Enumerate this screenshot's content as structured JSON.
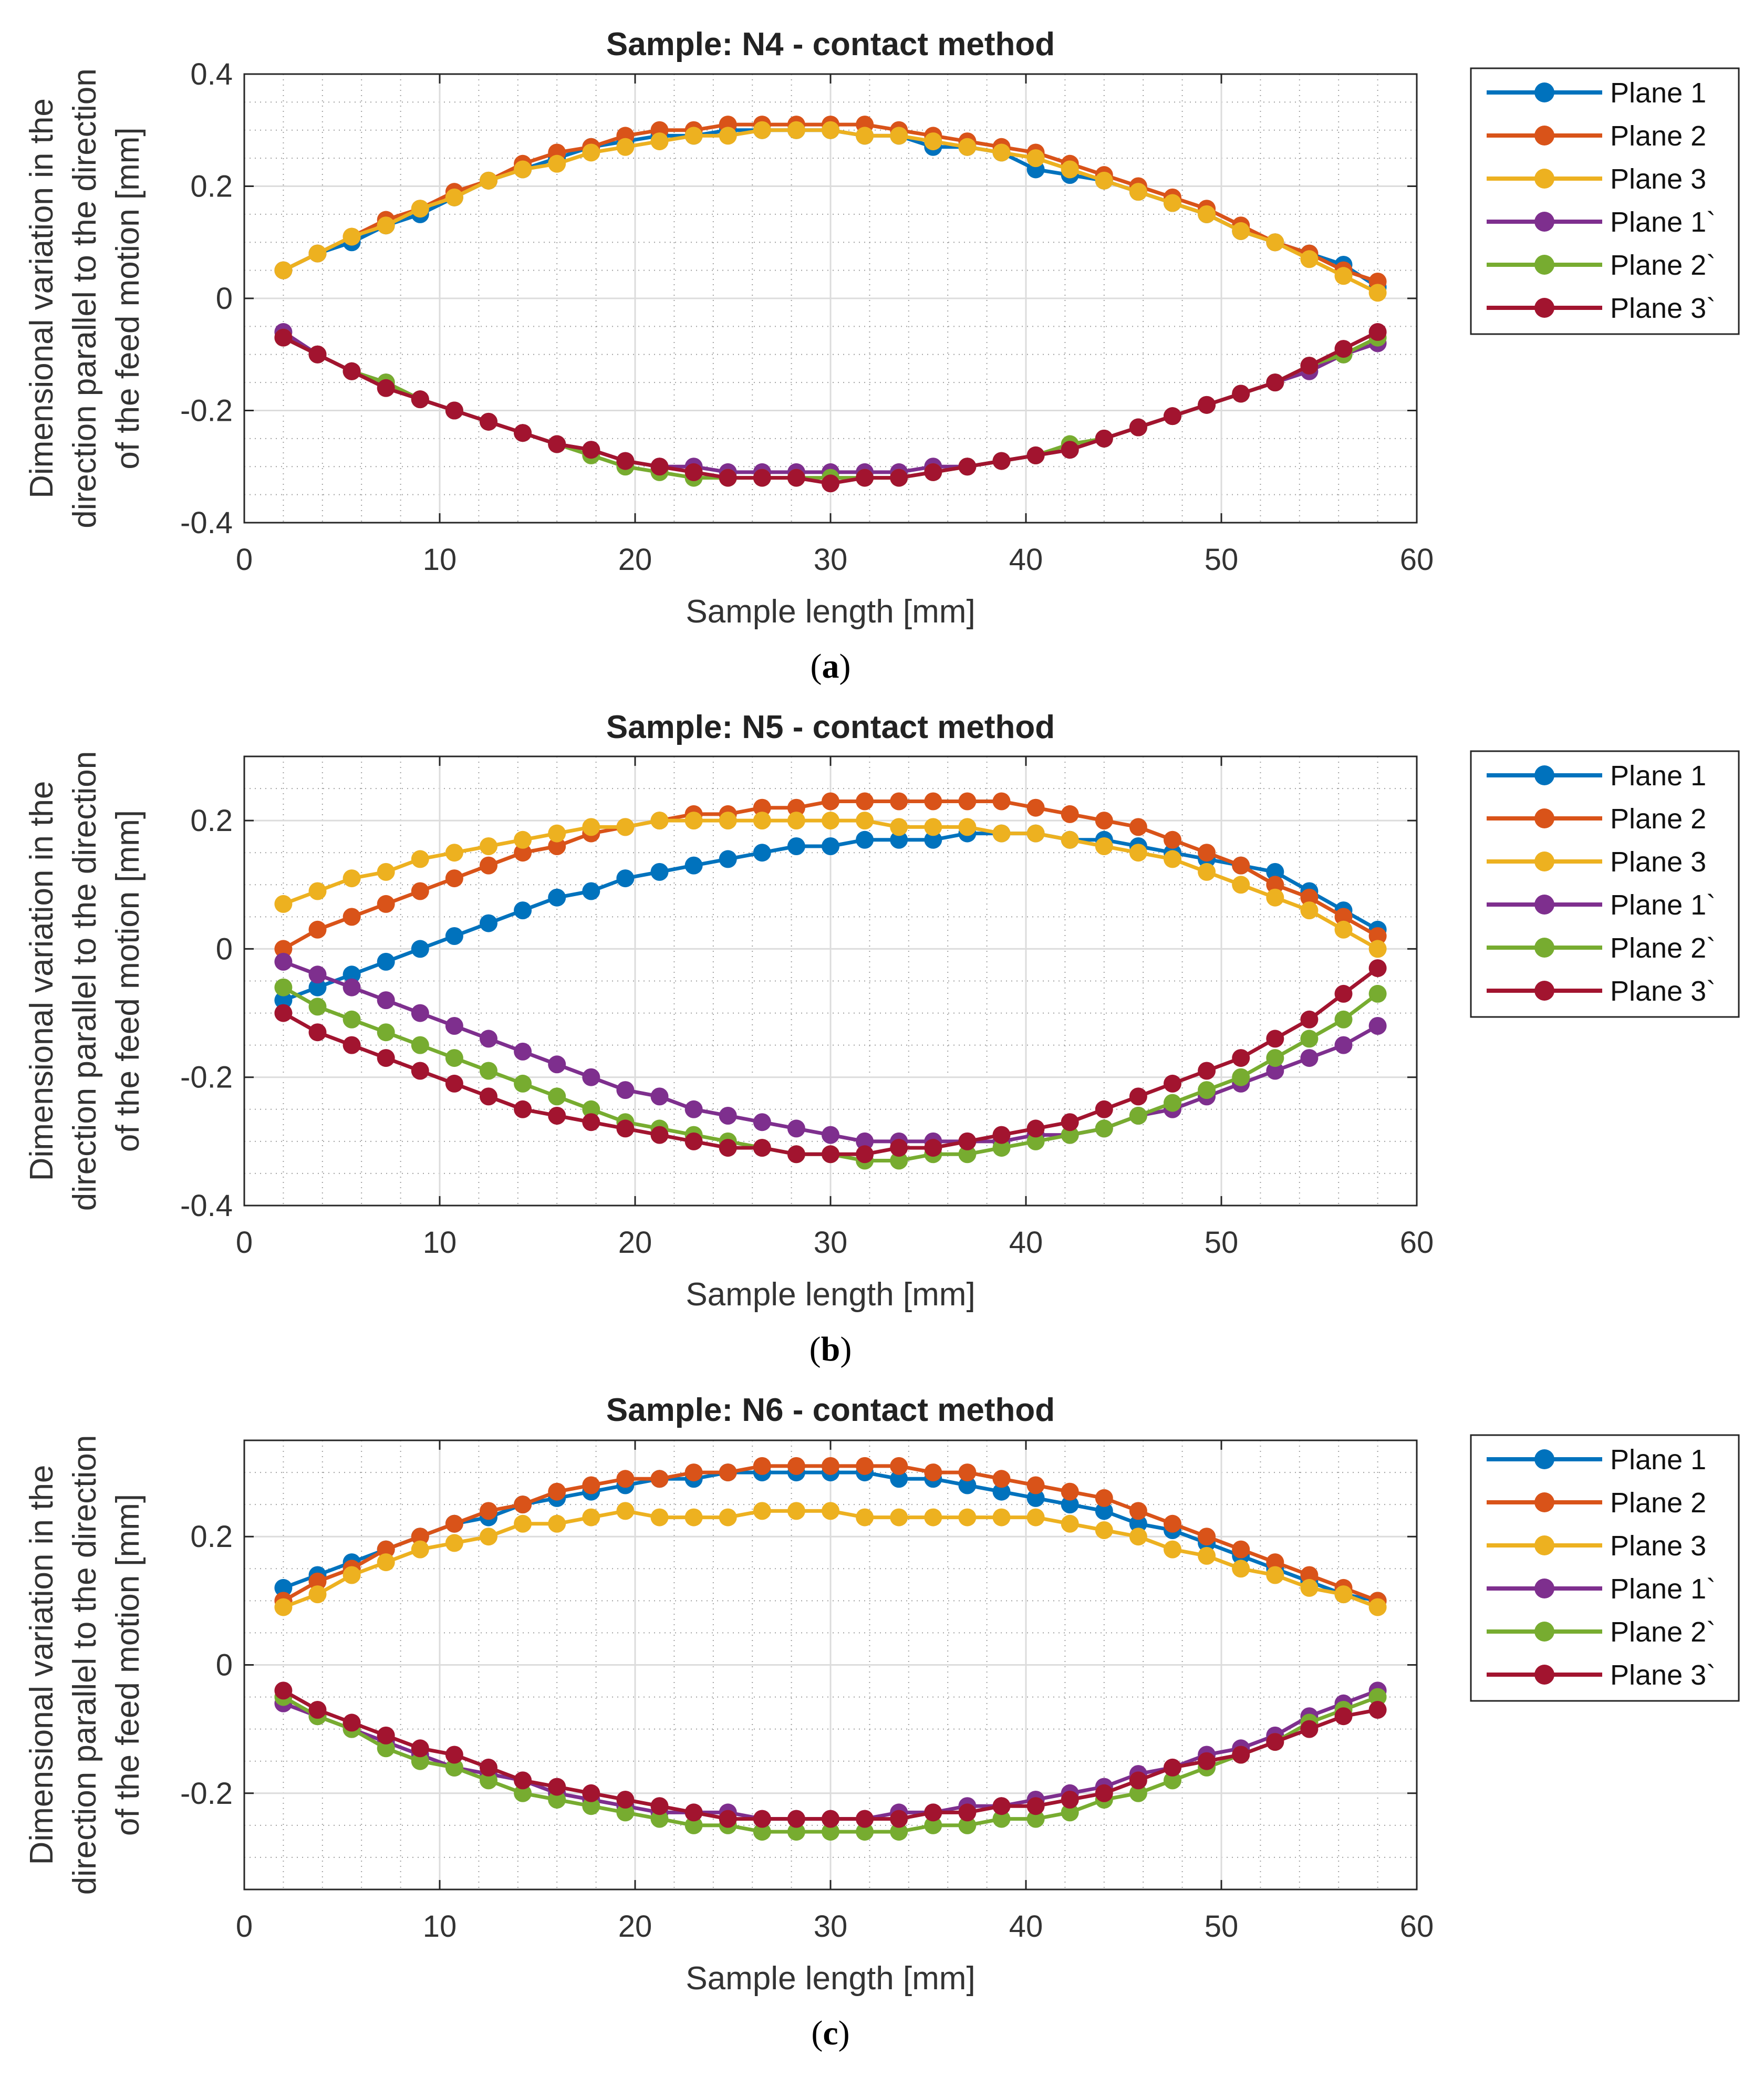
{
  "chart_data": [
    {
      "type": "line",
      "title": "Sample: N4 - contact method",
      "caption_letter": "a",
      "xlabel": "Sample length [mm]",
      "ylabel_lines": [
        "Dimensional variation in the",
        "direction parallel to the direction",
        "of the feed motion [mm]"
      ],
      "xlim": [
        0,
        60
      ],
      "ylim": [
        -0.4,
        0.4
      ],
      "xticks": [
        0,
        10,
        20,
        30,
        40,
        50,
        60
      ],
      "xtick_labels": [
        "0",
        "10",
        "20",
        "30",
        "40",
        "50",
        "60"
      ],
      "yticks": [
        -0.4,
        -0.2,
        0,
        0.2,
        0.4
      ],
      "ytick_labels": [
        "-0.4",
        "-0.2",
        "0",
        "0.2",
        "0.4"
      ],
      "grid": true,
      "legend_position": "outside-right",
      "x": [
        2,
        3.75,
        5.5,
        7.25,
        9,
        10.75,
        12.5,
        14.25,
        16,
        17.75,
        19.5,
        21.25,
        23,
        24.75,
        26.5,
        28.25,
        30,
        31.75,
        33.5,
        35.25,
        37,
        38.75,
        40.5,
        42.25,
        44,
        45.75,
        47.5,
        49.25,
        51,
        52.75,
        54.5,
        56.25,
        58
      ],
      "series": [
        {
          "name": "Plane 1",
          "values": [
            0.05,
            0.08,
            0.1,
            0.13,
            0.15,
            0.18,
            0.21,
            0.23,
            0.25,
            0.27,
            0.28,
            0.29,
            0.29,
            0.3,
            0.3,
            0.3,
            0.3,
            0.29,
            0.29,
            0.27,
            0.27,
            0.26,
            0.23,
            0.22,
            0.21,
            0.19,
            0.17,
            0.15,
            0.12,
            0.1,
            0.08,
            0.06,
            0.02
          ]
        },
        {
          "name": "Plane 2",
          "values": [
            0.05,
            0.08,
            0.11,
            0.14,
            0.16,
            0.19,
            0.21,
            0.24,
            0.26,
            0.27,
            0.29,
            0.3,
            0.3,
            0.31,
            0.31,
            0.31,
            0.31,
            0.31,
            0.3,
            0.29,
            0.28,
            0.27,
            0.26,
            0.24,
            0.22,
            0.2,
            0.18,
            0.16,
            0.13,
            0.1,
            0.08,
            0.05,
            0.03
          ]
        },
        {
          "name": "Plane 3",
          "values": [
            0.05,
            0.08,
            0.11,
            0.13,
            0.16,
            0.18,
            0.21,
            0.23,
            0.24,
            0.26,
            0.27,
            0.28,
            0.29,
            0.29,
            0.3,
            0.3,
            0.3,
            0.29,
            0.29,
            0.28,
            0.27,
            0.26,
            0.25,
            0.23,
            0.21,
            0.19,
            0.17,
            0.15,
            0.12,
            0.1,
            0.07,
            0.04,
            0.01
          ]
        },
        {
          "name": "Plane 1`",
          "values": [
            -0.06,
            -0.1,
            -0.13,
            -0.15,
            -0.18,
            -0.2,
            -0.22,
            -0.24,
            -0.26,
            -0.27,
            -0.29,
            -0.3,
            -0.3,
            -0.31,
            -0.31,
            -0.31,
            -0.31,
            -0.31,
            -0.31,
            -0.3,
            -0.3,
            -0.29,
            -0.28,
            -0.27,
            -0.25,
            -0.23,
            -0.21,
            -0.19,
            -0.17,
            -0.15,
            -0.13,
            -0.1,
            -0.08
          ]
        },
        {
          "name": "Plane 2`",
          "values": [
            -0.07,
            -0.1,
            -0.13,
            -0.15,
            -0.18,
            -0.2,
            -0.22,
            -0.24,
            -0.26,
            -0.28,
            -0.3,
            -0.31,
            -0.32,
            -0.32,
            -0.32,
            -0.32,
            -0.32,
            -0.32,
            -0.32,
            -0.31,
            -0.3,
            -0.29,
            -0.28,
            -0.26,
            -0.25,
            -0.23,
            -0.21,
            -0.19,
            -0.17,
            -0.15,
            -0.12,
            -0.1,
            -0.07
          ]
        },
        {
          "name": "Plane 3`",
          "values": [
            -0.07,
            -0.1,
            -0.13,
            -0.16,
            -0.18,
            -0.2,
            -0.22,
            -0.24,
            -0.26,
            -0.27,
            -0.29,
            -0.3,
            -0.31,
            -0.32,
            -0.32,
            -0.32,
            -0.33,
            -0.32,
            -0.32,
            -0.31,
            -0.3,
            -0.29,
            -0.28,
            -0.27,
            -0.25,
            -0.23,
            -0.21,
            -0.19,
            -0.17,
            -0.15,
            -0.12,
            -0.09,
            -0.06
          ]
        }
      ]
    },
    {
      "type": "line",
      "title": "Sample: N5 - contact method",
      "caption_letter": "b",
      "xlabel": "Sample length [mm]",
      "ylabel_lines": [
        "Dimensional variation in the",
        "direction parallel to the direction",
        "of the feed motion [mm]"
      ],
      "xlim": [
        0,
        60
      ],
      "ylim": [
        -0.4,
        0.3
      ],
      "xticks": [
        0,
        10,
        20,
        30,
        40,
        50,
        60
      ],
      "xtick_labels": [
        "0",
        "10",
        "20",
        "30",
        "40",
        "50",
        "60"
      ],
      "yticks": [
        -0.4,
        -0.2,
        0,
        0.2
      ],
      "ytick_labels": [
        "-0.4",
        "-0.2",
        "0",
        "0.2"
      ],
      "grid": true,
      "legend_position": "outside-right",
      "x": [
        2,
        3.75,
        5.5,
        7.25,
        9,
        10.75,
        12.5,
        14.25,
        16,
        17.75,
        19.5,
        21.25,
        23,
        24.75,
        26.5,
        28.25,
        30,
        31.75,
        33.5,
        35.25,
        37,
        38.75,
        40.5,
        42.25,
        44,
        45.75,
        47.5,
        49.25,
        51,
        52.75,
        54.5,
        56.25,
        58
      ],
      "series": [
        {
          "name": "Plane 1",
          "values": [
            -0.08,
            -0.06,
            -0.04,
            -0.02,
            0.0,
            0.02,
            0.04,
            0.06,
            0.08,
            0.09,
            0.11,
            0.12,
            0.13,
            0.14,
            0.15,
            0.16,
            0.16,
            0.17,
            0.17,
            0.17,
            0.18,
            0.18,
            0.18,
            0.17,
            0.17,
            0.16,
            0.15,
            0.14,
            0.13,
            0.12,
            0.09,
            0.06,
            0.03
          ]
        },
        {
          "name": "Plane 2",
          "values": [
            0.0,
            0.03,
            0.05,
            0.07,
            0.09,
            0.11,
            0.13,
            0.15,
            0.16,
            0.18,
            0.19,
            0.2,
            0.21,
            0.21,
            0.22,
            0.22,
            0.23,
            0.23,
            0.23,
            0.23,
            0.23,
            0.23,
            0.22,
            0.21,
            0.2,
            0.19,
            0.17,
            0.15,
            0.13,
            0.1,
            0.08,
            0.05,
            0.02
          ]
        },
        {
          "name": "Plane 3",
          "values": [
            0.07,
            0.09,
            0.11,
            0.12,
            0.14,
            0.15,
            0.16,
            0.17,
            0.18,
            0.19,
            0.19,
            0.2,
            0.2,
            0.2,
            0.2,
            0.2,
            0.2,
            0.2,
            0.19,
            0.19,
            0.19,
            0.18,
            0.18,
            0.17,
            0.16,
            0.15,
            0.14,
            0.12,
            0.1,
            0.08,
            0.06,
            0.03,
            0.0
          ]
        },
        {
          "name": "Plane 1`",
          "values": [
            -0.02,
            -0.04,
            -0.06,
            -0.08,
            -0.1,
            -0.12,
            -0.14,
            -0.16,
            -0.18,
            -0.2,
            -0.22,
            -0.23,
            -0.25,
            -0.26,
            -0.27,
            -0.28,
            -0.29,
            -0.3,
            -0.3,
            -0.3,
            -0.3,
            -0.3,
            -0.29,
            -0.29,
            -0.28,
            -0.26,
            -0.25,
            -0.23,
            -0.21,
            -0.19,
            -0.17,
            -0.15,
            -0.12
          ]
        },
        {
          "name": "Plane 2`",
          "values": [
            -0.06,
            -0.09,
            -0.11,
            -0.13,
            -0.15,
            -0.17,
            -0.19,
            -0.21,
            -0.23,
            -0.25,
            -0.27,
            -0.28,
            -0.29,
            -0.3,
            -0.31,
            -0.32,
            -0.32,
            -0.33,
            -0.33,
            -0.32,
            -0.32,
            -0.31,
            -0.3,
            -0.29,
            -0.28,
            -0.26,
            -0.24,
            -0.22,
            -0.2,
            -0.17,
            -0.14,
            -0.11,
            -0.07
          ]
        },
        {
          "name": "Plane 3`",
          "values": [
            -0.1,
            -0.13,
            -0.15,
            -0.17,
            -0.19,
            -0.21,
            -0.23,
            -0.25,
            -0.26,
            -0.27,
            -0.28,
            -0.29,
            -0.3,
            -0.31,
            -0.31,
            -0.32,
            -0.32,
            -0.32,
            -0.31,
            -0.31,
            -0.3,
            -0.29,
            -0.28,
            -0.27,
            -0.25,
            -0.23,
            -0.21,
            -0.19,
            -0.17,
            -0.14,
            -0.11,
            -0.07,
            -0.03
          ]
        }
      ]
    },
    {
      "type": "line",
      "title": "Sample: N6 - contact method",
      "caption_letter": "c",
      "xlabel": "Sample length [mm]",
      "ylabel_lines": [
        "Dimensional variation in the",
        "direction parallel to the direction",
        "of the feed motion [mm]"
      ],
      "xlim": [
        0,
        60
      ],
      "ylim": [
        -0.35,
        0.35
      ],
      "xticks": [
        0,
        10,
        20,
        30,
        40,
        50,
        60
      ],
      "xtick_labels": [
        "0",
        "10",
        "20",
        "30",
        "40",
        "50",
        "60"
      ],
      "yticks": [
        -0.2,
        0,
        0.2
      ],
      "ytick_labels": [
        "-0.2",
        "0",
        "0.2"
      ],
      "grid": true,
      "legend_position": "outside-right",
      "x": [
        2,
        3.75,
        5.5,
        7.25,
        9,
        10.75,
        12.5,
        14.25,
        16,
        17.75,
        19.5,
        21.25,
        23,
        24.75,
        26.5,
        28.25,
        30,
        31.75,
        33.5,
        35.25,
        37,
        38.75,
        40.5,
        42.25,
        44,
        45.75,
        47.5,
        49.25,
        51,
        52.75,
        54.5,
        56.25,
        58
      ],
      "series": [
        {
          "name": "Plane 1",
          "values": [
            0.12,
            0.14,
            0.16,
            0.18,
            0.2,
            0.22,
            0.23,
            0.25,
            0.26,
            0.27,
            0.28,
            0.29,
            0.29,
            0.3,
            0.3,
            0.3,
            0.3,
            0.3,
            0.29,
            0.29,
            0.28,
            0.27,
            0.26,
            0.25,
            0.24,
            0.22,
            0.21,
            0.19,
            0.17,
            0.15,
            0.13,
            0.11,
            0.1
          ]
        },
        {
          "name": "Plane 2",
          "values": [
            0.1,
            0.13,
            0.15,
            0.18,
            0.2,
            0.22,
            0.24,
            0.25,
            0.27,
            0.28,
            0.29,
            0.29,
            0.3,
            0.3,
            0.31,
            0.31,
            0.31,
            0.31,
            0.31,
            0.3,
            0.3,
            0.29,
            0.28,
            0.27,
            0.26,
            0.24,
            0.22,
            0.2,
            0.18,
            0.16,
            0.14,
            0.12,
            0.1
          ]
        },
        {
          "name": "Plane 3",
          "values": [
            0.09,
            0.11,
            0.14,
            0.16,
            0.18,
            0.19,
            0.2,
            0.22,
            0.22,
            0.23,
            0.24,
            0.23,
            0.23,
            0.23,
            0.24,
            0.24,
            0.24,
            0.23,
            0.23,
            0.23,
            0.23,
            0.23,
            0.23,
            0.22,
            0.21,
            0.2,
            0.18,
            0.17,
            0.15,
            0.14,
            0.12,
            0.11,
            0.09
          ]
        },
        {
          "name": "Plane 1`",
          "values": [
            -0.06,
            -0.08,
            -0.1,
            -0.12,
            -0.14,
            -0.16,
            -0.17,
            -0.18,
            -0.2,
            -0.21,
            -0.22,
            -0.23,
            -0.23,
            -0.23,
            -0.24,
            -0.24,
            -0.24,
            -0.24,
            -0.23,
            -0.23,
            -0.22,
            -0.22,
            -0.21,
            -0.2,
            -0.19,
            -0.17,
            -0.16,
            -0.14,
            -0.13,
            -0.11,
            -0.08,
            -0.06,
            -0.04
          ]
        },
        {
          "name": "Plane 2`",
          "values": [
            -0.05,
            -0.08,
            -0.1,
            -0.13,
            -0.15,
            -0.16,
            -0.18,
            -0.2,
            -0.21,
            -0.22,
            -0.23,
            -0.24,
            -0.25,
            -0.25,
            -0.26,
            -0.26,
            -0.26,
            -0.26,
            -0.26,
            -0.25,
            -0.25,
            -0.24,
            -0.24,
            -0.23,
            -0.21,
            -0.2,
            -0.18,
            -0.16,
            -0.14,
            -0.12,
            -0.09,
            -0.07,
            -0.05
          ]
        },
        {
          "name": "Plane 3`",
          "values": [
            -0.04,
            -0.07,
            -0.09,
            -0.11,
            -0.13,
            -0.14,
            -0.16,
            -0.18,
            -0.19,
            -0.2,
            -0.21,
            -0.22,
            -0.23,
            -0.24,
            -0.24,
            -0.24,
            -0.24,
            -0.24,
            -0.24,
            -0.23,
            -0.23,
            -0.22,
            -0.22,
            -0.21,
            -0.2,
            -0.18,
            -0.16,
            -0.15,
            -0.14,
            -0.12,
            -0.1,
            -0.08,
            -0.07
          ]
        }
      ]
    }
  ],
  "colors": {
    "Plane 1": "#0072BD",
    "Plane 2": "#D95319",
    "Plane 3": "#EDB120",
    "Plane 1`": "#7E2F8E",
    "Plane 2`": "#77AC30",
    "Plane 3`": "#A2142F",
    "axis": "#262626",
    "grid": "#dcdcdc",
    "minor_grid": "#a0a0a0",
    "background": "#ffffff"
  }
}
